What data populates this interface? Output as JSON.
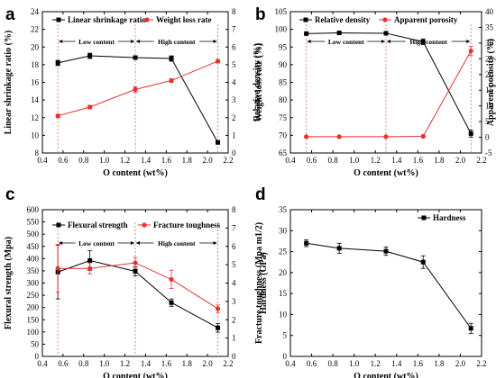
{
  "chart_data": [
    {
      "panel": "a",
      "type": "line",
      "xlabel": "O content (wt%)",
      "ylabel": "Linear shrinkage ratio (%)",
      "y2label": "Weight loss rate (%)",
      "xlim": [
        0.4,
        2.2
      ],
      "xticks": [
        "0.4",
        "0.6",
        "0.8",
        "1.0",
        "1.2",
        "1.4",
        "1.6",
        "1.8",
        "2.0",
        "2.2"
      ],
      "ylim": [
        8,
        24
      ],
      "yticks": [
        "8",
        "10",
        "12",
        "14",
        "16",
        "18",
        "20",
        "22",
        "24"
      ],
      "y2lim": [
        0,
        8
      ],
      "y2ticks": [
        "0",
        "1",
        "2",
        "3",
        "4",
        "5",
        "6",
        "7",
        "8"
      ],
      "legend_position": "top",
      "series": [
        {
          "name": "Linear shrinkage ratio",
          "axis": "left",
          "color": "#000000",
          "marker": "square",
          "x": [
            0.55,
            0.86,
            1.3,
            1.65,
            2.1
          ],
          "y": [
            18.2,
            19.0,
            18.8,
            18.7,
            9.2
          ],
          "err": [
            0.3,
            0.3,
            0.2,
            0.3,
            0.2
          ]
        },
        {
          "name": "Weight loss rate",
          "axis": "right",
          "color": "#e8312f",
          "marker": "circle",
          "x": [
            0.55,
            0.86,
            1.3,
            1.65,
            2.1
          ],
          "y": [
            2.1,
            2.6,
            3.6,
            4.1,
            5.2
          ],
          "err": [
            0.1,
            0.1,
            0.15,
            0.1,
            0.1
          ]
        }
      ],
      "vlines": [
        0.55,
        1.3,
        2.1
      ],
      "annotations": [
        "Low content",
        "High content"
      ]
    },
    {
      "panel": "b",
      "type": "line",
      "xlabel": "O content (wt%)",
      "ylabel": "Relative  density (%)",
      "y2label": "Apparent porosity (%)",
      "xlim": [
        0.4,
        2.2
      ],
      "xticks": [
        "0.4",
        "0.6",
        "0.8",
        "1.0",
        "1.2",
        "1.4",
        "1.6",
        "1.8",
        "2.0",
        "2.2"
      ],
      "ylim": [
        65,
        105
      ],
      "yticks": [
        "65",
        "70",
        "75",
        "80",
        "85",
        "90",
        "95",
        "100",
        "105"
      ],
      "y2lim": [
        -5,
        40
      ],
      "y2ticks": [
        "-5",
        "0",
        "5",
        "10",
        "15",
        "20",
        "25",
        "30",
        "35",
        "40"
      ],
      "legend_position": "top",
      "series": [
        {
          "name": "Relative  density",
          "axis": "left",
          "color": "#000000",
          "marker": "square",
          "x": [
            0.55,
            0.86,
            1.3,
            1.65,
            2.1
          ],
          "y": [
            98.8,
            99.0,
            98.9,
            96.5,
            70.5
          ],
          "err": [
            0.3,
            0.3,
            0.3,
            0.8,
            1.0
          ]
        },
        {
          "name": "Apparent porosity",
          "axis": "right",
          "color": "#e8312f",
          "marker": "circle",
          "x": [
            0.55,
            0.86,
            1.3,
            1.65,
            2.1
          ],
          "y": [
            0.2,
            0.2,
            0.2,
            0.3,
            27.5
          ],
          "err": [
            0.1,
            0.1,
            0.1,
            0.1,
            1.5
          ]
        }
      ],
      "vlines": [
        0.55,
        1.3,
        2.1
      ],
      "annotations": [
        "Low content",
        "High content"
      ]
    },
    {
      "panel": "c",
      "type": "line",
      "xlabel": "O content (wt%)",
      "ylabel": "Flexural strength (Mpa)",
      "y2label": "Fracture toughness (Mpa m1/2)",
      "xlim": [
        0.4,
        2.2
      ],
      "xticks": [
        "0.4",
        "0.6",
        "0.8",
        "1.0",
        "1.2",
        "1.4",
        "1.6",
        "1.8",
        "2.0",
        "2.2"
      ],
      "ylim": [
        0,
        600
      ],
      "yticks": [
        "0",
        "50",
        "100",
        "150",
        "200",
        "250",
        "300",
        "350",
        "400",
        "450",
        "500",
        "550",
        "600"
      ],
      "y2lim": [
        0,
        8
      ],
      "y2ticks": [
        "0",
        "1",
        "2",
        "3",
        "4",
        "5",
        "6",
        "7",
        "8"
      ],
      "legend_position": "top",
      "series": [
        {
          "name": "Flexural strength",
          "axis": "left",
          "color": "#000000",
          "marker": "square",
          "x": [
            0.55,
            0.86,
            1.3,
            1.65,
            2.1
          ],
          "y": [
            345,
            392,
            348,
            220,
            117
          ],
          "err": [
            110,
            40,
            18,
            15,
            18
          ]
        },
        {
          "name": "Fracture toughness",
          "axis": "right",
          "color": "#e8312f",
          "marker": "circle",
          "x": [
            0.55,
            0.86,
            1.3,
            1.65,
            2.1
          ],
          "y": [
            4.8,
            4.8,
            5.1,
            4.2,
            2.6
          ],
          "err": [
            1.3,
            0.3,
            0.3,
            0.5,
            0.2
          ]
        }
      ],
      "vlines": [
        0.55,
        1.3,
        2.1
      ],
      "annotations": [
        "Low content",
        "High content"
      ]
    },
    {
      "panel": "d",
      "type": "line",
      "xlabel": "O content (wt%)",
      "ylabel": "Hardness (GPa)",
      "xlim": [
        0.4,
        2.2
      ],
      "xticks": [
        "0.4",
        "0.6",
        "0.8",
        "1.0",
        "1.2",
        "1.4",
        "1.6",
        "1.8",
        "2.0",
        "2.2"
      ],
      "ylim": [
        0,
        35
      ],
      "yticks": [
        "0",
        "5",
        "10",
        "15",
        "20",
        "25",
        "30",
        "35"
      ],
      "legend_position": "top-right",
      "series": [
        {
          "name": "Hardness",
          "axis": "left",
          "color": "#000000",
          "marker": "square",
          "x": [
            0.55,
            0.86,
            1.3,
            1.65,
            2.1
          ],
          "y": [
            27.0,
            25.8,
            25.1,
            22.5,
            6.7
          ],
          "err": [
            0.8,
            1.2,
            1.0,
            1.5,
            1.2
          ]
        }
      ],
      "vlines": [],
      "annotations": []
    }
  ]
}
